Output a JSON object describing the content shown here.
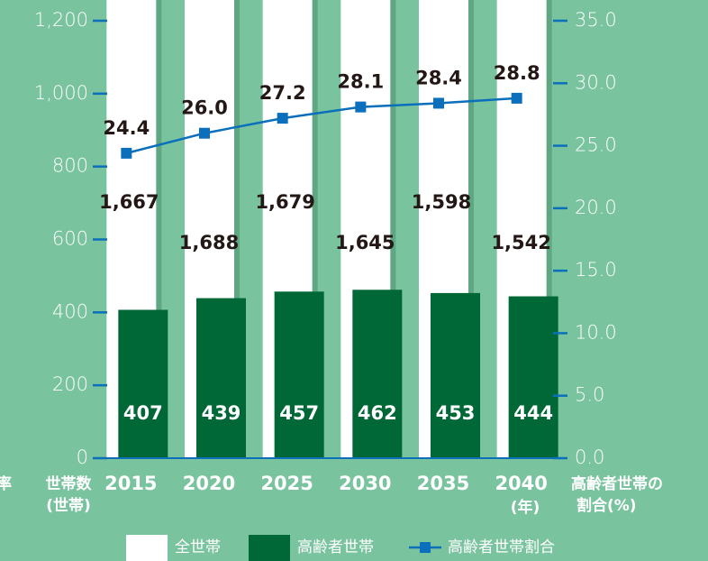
{
  "chart_data": {
    "type": "bar",
    "categories": [
      "2015",
      "2020",
      "2025",
      "2030",
      "2035",
      "2040"
    ],
    "x_unit": "(年)",
    "y_label": [
      "世帯数",
      "(世帯)"
    ],
    "y2_label": [
      "高齢者世帯の",
      "割合(%)"
    ],
    "left_edge_text": "率",
    "series": [
      {
        "name": "全世帯",
        "type": "bar",
        "color": "#ffffff",
        "values": [
          1667,
          1688,
          1679,
          1645,
          1598,
          1542
        ],
        "value_labels": [
          "1,667",
          "1,688",
          "1,679",
          "1,645",
          "1,598",
          "1,542"
        ]
      },
      {
        "name": "高齢者世帯",
        "type": "bar",
        "color": "#006837",
        "values": [
          407,
          439,
          457,
          462,
          453,
          444
        ]
      },
      {
        "name": "高齢者世帯割合",
        "type": "line",
        "axis": "y2",
        "color": "#0b6fbb",
        "values": [
          24.4,
          26.0,
          27.2,
          28.1,
          28.4,
          28.8
        ],
        "value_labels": [
          "24.4",
          "26.0",
          "27.2",
          "28.1",
          "28.4",
          "28.8"
        ]
      }
    ],
    "ylim": [
      0,
      1200
    ],
    "yticks": [
      0,
      200,
      400,
      600,
      800,
      {
        "value": 1000,
        "label": "1,000"
      },
      {
        "value": 1200,
        "label": "1,200"
      }
    ],
    "y2lim": [
      0,
      35
    ],
    "y2ticks": [
      {
        "value": 0,
        "label": "0.0"
      },
      {
        "value": 5,
        "label": "5.0"
      },
      {
        "value": 10,
        "label": "10.0"
      },
      {
        "value": 15,
        "label": "15.0"
      },
      {
        "value": 20,
        "label": "20.0"
      },
      {
        "value": 25,
        "label": "25.0"
      },
      {
        "value": 30,
        "label": "30.0"
      },
      {
        "value": 35,
        "label": "35.0"
      }
    ]
  }
}
